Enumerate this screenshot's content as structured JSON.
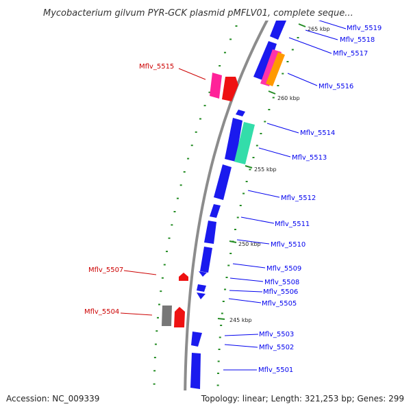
{
  "title": "Mycobacterium gilvum PYR-GCK plasmid pMFLV01, complete seque...",
  "footer": {
    "accession": "Accession: NC_009339",
    "summary": "Topology: linear; Length: 321,253 bp; Genes: 299"
  },
  "ticks": [
    "265 kbp",
    "260 kbp",
    "255 kbp",
    "250 kbp",
    "245 kbp"
  ],
  "genes": [
    {
      "name": "Mflv_5519",
      "strand": "forward",
      "color": "#0000ee"
    },
    {
      "name": "Mflv_5518",
      "strand": "forward",
      "color": "#0000ee"
    },
    {
      "name": "Mflv_5517",
      "strand": "forward",
      "color": "#0000ee"
    },
    {
      "name": "Mflv_5516",
      "strand": "forward",
      "color": "#0000ee"
    },
    {
      "name": "Mflv_5515",
      "strand": "reverse",
      "color": "#cc0000"
    },
    {
      "name": "Mflv_5514",
      "strand": "forward",
      "color": "#0000ee"
    },
    {
      "name": "Mflv_5513",
      "strand": "forward",
      "color": "#0000ee"
    },
    {
      "name": "Mflv_5512",
      "strand": "forward",
      "color": "#0000ee"
    },
    {
      "name": "Mflv_5511",
      "strand": "forward",
      "color": "#0000ee"
    },
    {
      "name": "Mflv_5510",
      "strand": "forward",
      "color": "#0000ee"
    },
    {
      "name": "Mflv_5509",
      "strand": "forward",
      "color": "#0000ee"
    },
    {
      "name": "Mflv_5508",
      "strand": "forward",
      "color": "#0000ee"
    },
    {
      "name": "Mflv_5507",
      "strand": "reverse",
      "color": "#cc0000"
    },
    {
      "name": "Mflv_5506",
      "strand": "forward",
      "color": "#0000ee"
    },
    {
      "name": "Mflv_5505",
      "strand": "forward",
      "color": "#0000ee"
    },
    {
      "name": "Mflv_5504",
      "strand": "reverse",
      "color": "#cc0000"
    },
    {
      "name": "Mflv_5503",
      "strand": "forward",
      "color": "#0000ee"
    },
    {
      "name": "Mflv_5502",
      "strand": "forward",
      "color": "#0000ee"
    },
    {
      "name": "Mflv_5501",
      "strand": "forward",
      "color": "#0000ee"
    }
  ],
  "colors": {
    "backbone": "#8c8c8c",
    "forward_gene": "#1a1aee",
    "reverse_gene": "#ee1111",
    "tick": "#228b22"
  }
}
